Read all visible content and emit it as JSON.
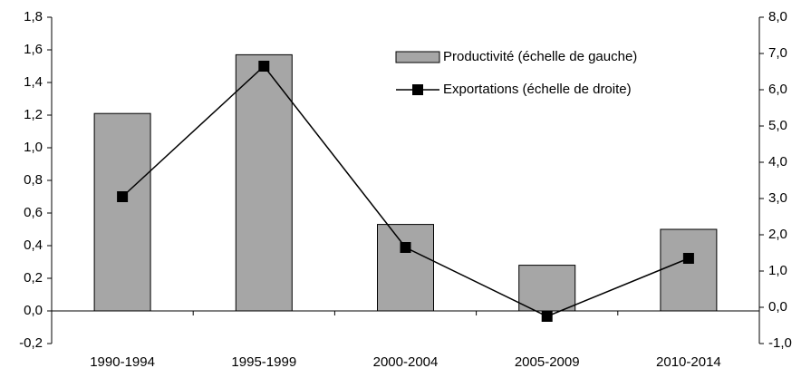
{
  "chart_data": {
    "type": "bar-line",
    "categories": [
      "1990-1994",
      "1995-1999",
      "2000-2004",
      "2005-2009",
      "2010-2014"
    ],
    "series": [
      {
        "name": "Productivité (échelle de gauche)",
        "type": "bar",
        "color": "#a6a6a6",
        "values": [
          1.21,
          1.57,
          0.53,
          0.28,
          0.5
        ]
      },
      {
        "name": "Exportations (échelle de droite)",
        "type": "line",
        "axis": "y2",
        "color": "#000000",
        "values": [
          3.05,
          6.65,
          1.65,
          -0.25,
          1.35
        ]
      }
    ],
    "ylim": [
      -0.2,
      1.8
    ],
    "yticks": [
      {
        "value": -0.2,
        "label": "-0,2"
      },
      {
        "value": 0,
        "label": "0,0"
      },
      {
        "value": 0.2,
        "label": "0,2"
      },
      {
        "value": 0.4,
        "label": "0,4"
      },
      {
        "value": 0.6,
        "label": "0,6"
      },
      {
        "value": 0.8,
        "label": "0,8"
      },
      {
        "value": 1.0,
        "label": "1,0"
      },
      {
        "value": 1.2,
        "label": "1,2"
      },
      {
        "value": 1.4,
        "label": "1,4"
      },
      {
        "value": 1.6,
        "label": "1,6"
      },
      {
        "value": 1.8,
        "label": "1,8"
      }
    ],
    "y2lim": [
      -1,
      8
    ],
    "y2ticks": [
      {
        "value": -1,
        "label": "-1,0"
      },
      {
        "value": 0,
        "label": "0,0"
      },
      {
        "value": 1,
        "label": "1,0"
      },
      {
        "value": 2,
        "label": "2,0"
      },
      {
        "value": 3,
        "label": "3,0"
      },
      {
        "value": 4,
        "label": "4,0"
      },
      {
        "value": 5,
        "label": "5,0"
      },
      {
        "value": 6,
        "label": "6,0"
      },
      {
        "value": 7,
        "label": "7,0"
      },
      {
        "value": 8,
        "label": "8,0"
      }
    ],
    "grid": false,
    "legend": "upper right"
  }
}
